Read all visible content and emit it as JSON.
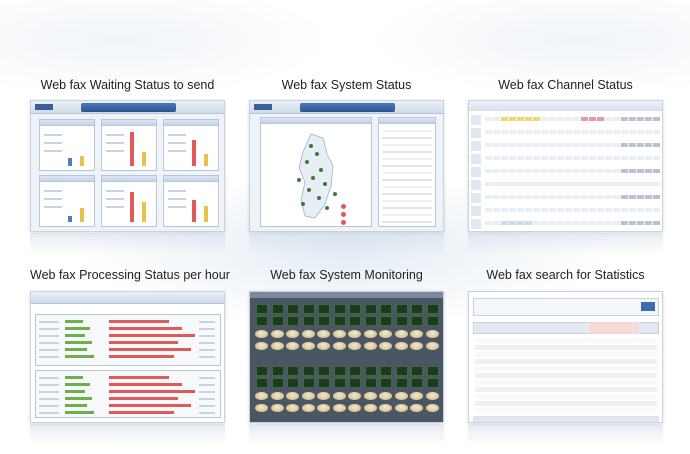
{
  "cards": [
    {
      "title": "Web fax Waiting Status to send"
    },
    {
      "title": "Web fax System Status"
    },
    {
      "title": "Web fax Channel Status"
    },
    {
      "title": "Web fax Processing Status per hour"
    },
    {
      "title": "Web fax System Monitoring"
    },
    {
      "title": "Web fax search for Statistics"
    }
  ],
  "colors": {
    "panel_border": "#b8c6d8",
    "header_blue": "#2b5592",
    "bar_red": "#e05a5a",
    "bar_green": "#6bb04a",
    "bar_blue": "#4a7fd0",
    "bar_yellow": "#e6c24a"
  }
}
